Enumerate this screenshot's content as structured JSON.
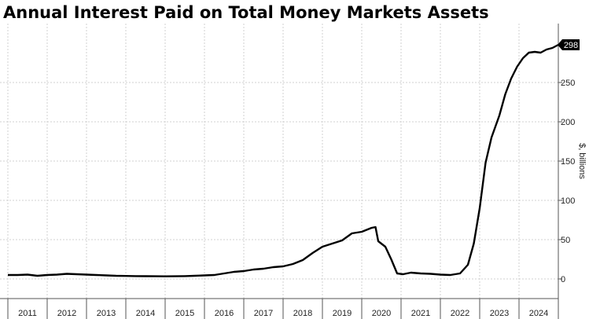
{
  "chart_data": {
    "type": "line",
    "title": "Annual Interest Paid on Total Money Markets Assets",
    "ylabel": "$, billions",
    "xlabel": "",
    "ylim": [
      -25,
      325
    ],
    "yticks": [
      0,
      50,
      100,
      150,
      200,
      250
    ],
    "ytick_labels": [
      "0",
      "50",
      "100",
      "150",
      "200",
      "250"
    ],
    "x_categories": [
      "2011",
      "2012",
      "2013",
      "2014",
      "2015",
      "2016",
      "2017",
      "2018",
      "2019",
      "2020",
      "2021",
      "2022",
      "2023",
      "2024"
    ],
    "last_value_label": "298",
    "grid": true,
    "series": [
      {
        "name": "Annual Interest Paid",
        "color": "#000000",
        "points": [
          [
            2010.5,
            5
          ],
          [
            2010.75,
            5
          ],
          [
            2011.0,
            5.5
          ],
          [
            2011.25,
            4
          ],
          [
            2011.5,
            5
          ],
          [
            2011.75,
            5.5
          ],
          [
            2012.0,
            6.5
          ],
          [
            2012.25,
            6
          ],
          [
            2012.5,
            5.5
          ],
          [
            2012.75,
            5
          ],
          [
            2013.0,
            4.5
          ],
          [
            2013.25,
            4
          ],
          [
            2013.5,
            3.8
          ],
          [
            2013.75,
            3.6
          ],
          [
            2014.0,
            3.5
          ],
          [
            2014.25,
            3.4
          ],
          [
            2014.5,
            3.3
          ],
          [
            2014.75,
            3.4
          ],
          [
            2015.0,
            3.6
          ],
          [
            2015.25,
            4
          ],
          [
            2015.5,
            4.5
          ],
          [
            2015.75,
            5
          ],
          [
            2016.0,
            7
          ],
          [
            2016.25,
            9
          ],
          [
            2016.5,
            10
          ],
          [
            2016.75,
            12
          ],
          [
            2017.0,
            13
          ],
          [
            2017.25,
            15
          ],
          [
            2017.5,
            16
          ],
          [
            2017.75,
            19
          ],
          [
            2018.0,
            24
          ],
          [
            2018.25,
            33
          ],
          [
            2018.5,
            41
          ],
          [
            2018.75,
            45
          ],
          [
            2019.0,
            49
          ],
          [
            2019.25,
            58
          ],
          [
            2019.5,
            60
          ],
          [
            2019.75,
            65
          ],
          [
            2019.85,
            66
          ],
          [
            2019.92,
            48
          ],
          [
            2020.1,
            41
          ],
          [
            2020.25,
            25
          ],
          [
            2020.4,
            7
          ],
          [
            2020.55,
            6
          ],
          [
            2020.75,
            8
          ],
          [
            2021.0,
            7
          ],
          [
            2021.25,
            6.5
          ],
          [
            2021.5,
            5.5
          ],
          [
            2021.75,
            5
          ],
          [
            2022.0,
            7
          ],
          [
            2022.2,
            18
          ],
          [
            2022.35,
            45
          ],
          [
            2022.5,
            90
          ],
          [
            2022.65,
            148
          ],
          [
            2022.8,
            180
          ],
          [
            2023.0,
            208
          ],
          [
            2023.15,
            235
          ],
          [
            2023.3,
            255
          ],
          [
            2023.45,
            270
          ],
          [
            2023.6,
            281
          ],
          [
            2023.75,
            288
          ],
          [
            2023.9,
            289
          ],
          [
            2024.05,
            288
          ],
          [
            2024.2,
            292
          ],
          [
            2024.35,
            294
          ],
          [
            2024.5,
            298
          ]
        ]
      }
    ]
  }
}
